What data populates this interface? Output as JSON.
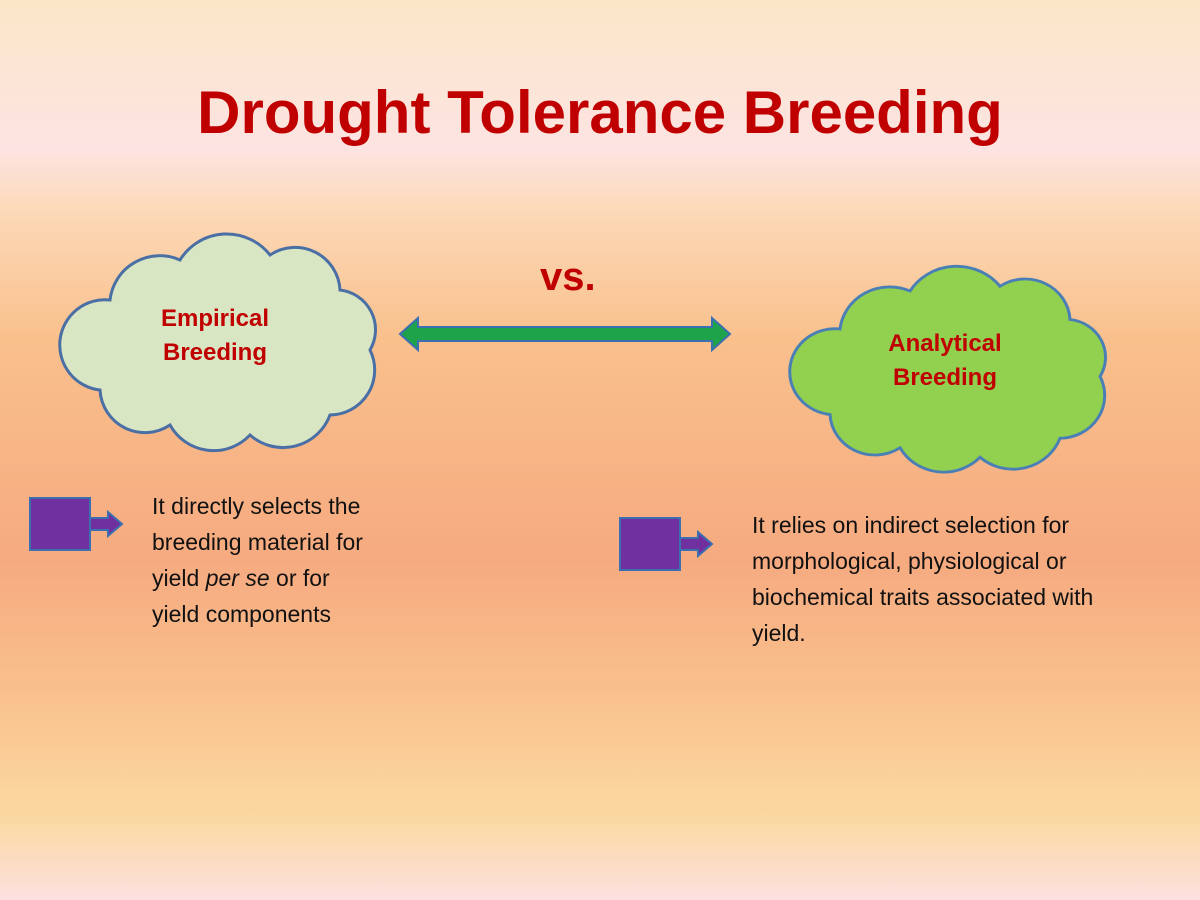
{
  "title": "Drought Tolerance Breeding",
  "versus": "vs.",
  "left": {
    "label": "Empirical Breeding",
    "text_before": "It directly selects the breeding material for yield",
    "text_italic": "per se",
    "text_after": "or for yield components"
  },
  "right": {
    "label": "Analytical Breeding",
    "text": "It relies on indirect selection for morphological, physiological or biochemical traits associated with yield."
  }
}
